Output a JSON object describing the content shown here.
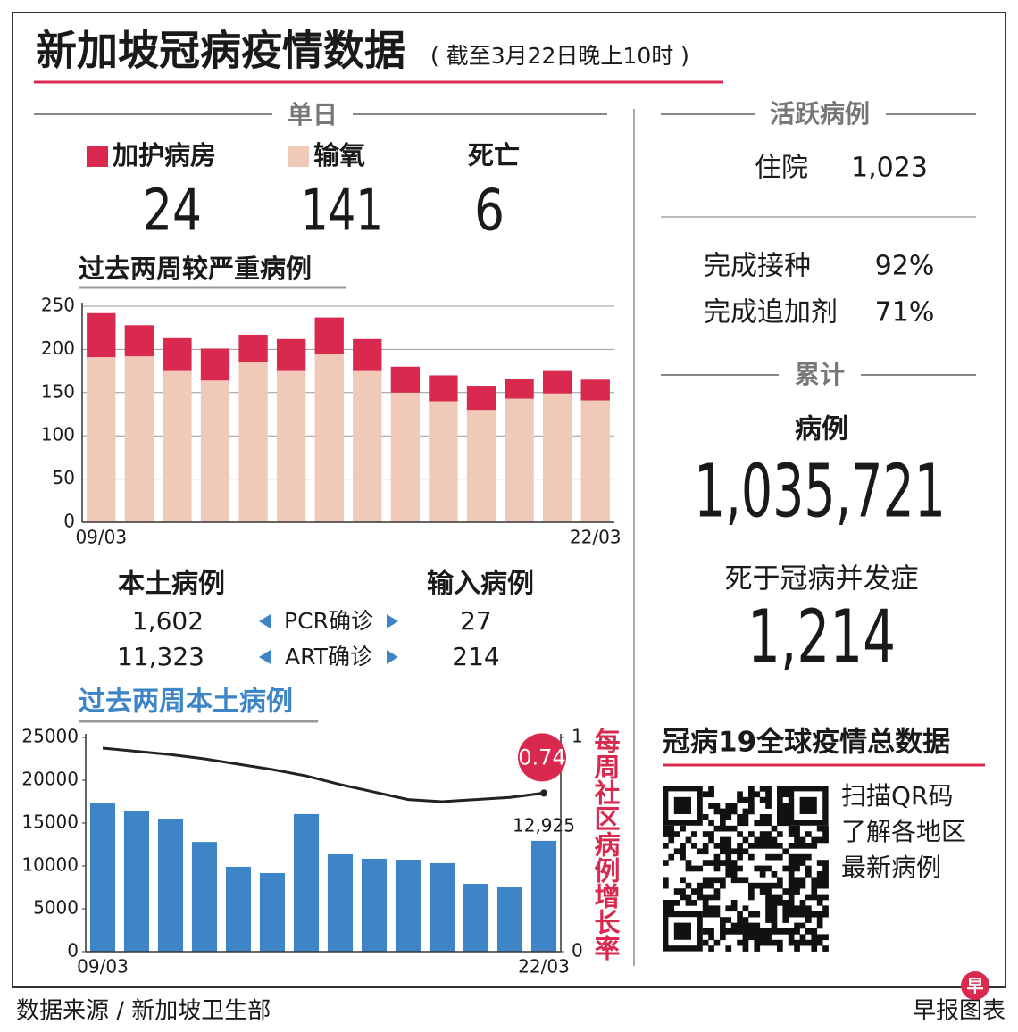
{
  "header": {
    "title": "新加坡冠病疫情数据",
    "subtitle": "( 截至3月22日晚上10时 )"
  },
  "daily": {
    "label": "单日",
    "icu": "24",
    "oxygen": "141",
    "death_label": "死亡",
    "death": "6"
  },
  "cases_table": {
    "local_header": "本土病例",
    "imported_header": "输入病例",
    "rows": [
      [
        "1,602",
        "PCR确诊",
        "27"
      ],
      [
        "11,323",
        "ART确诊",
        "214"
      ]
    ]
  },
  "active": {
    "label": "活跃病例",
    "hospital_label": "住院",
    "hospital": "1,023",
    "vaccinated_label": "完成接种",
    "vaccinated": "92%",
    "booster_label": "完成追加剂",
    "booster": "71%"
  },
  "cumulative": {
    "label": "累计",
    "cases_label": "病例",
    "cases": "1,035,721",
    "deaths_label": "死于冠病并发症",
    "deaths": "1,214"
  },
  "global": {
    "title": "冠病19全球疫情总数据",
    "lines": [
      "扫描QR码",
      "了解各地区",
      "最新病例"
    ]
  },
  "footer": {
    "source": "数据来源 / 新加坡卫生部",
    "credit": "早报图表",
    "logo": "早"
  },
  "chart_data": [
    {
      "type": "bar",
      "stacked": true,
      "title": "过去两周较严重病例",
      "categories": [
        "09/03",
        null,
        null,
        null,
        null,
        null,
        null,
        null,
        null,
        null,
        null,
        null,
        null,
        "22/03"
      ],
      "series": [
        {
          "name": "输氧",
          "color": "#f0c9b8",
          "values": [
            191,
            192,
            175,
            164,
            185,
            175,
            195,
            175,
            150,
            140,
            130,
            143,
            149,
            141
          ]
        },
        {
          "name": "加护病房",
          "color": "#d9294f",
          "values": [
            51,
            36,
            38,
            37,
            32,
            37,
            42,
            37,
            30,
            30,
            28,
            23,
            26,
            24
          ]
        }
      ],
      "ylim": [
        0,
        250
      ],
      "yticks": [
        0,
        50,
        100,
        150,
        200,
        250
      ],
      "grid": true
    },
    {
      "type": "bar",
      "title": "过去两周本土病例",
      "y2label": "每周社区病例增长率",
      "categories": [
        "09/03",
        null,
        null,
        null,
        null,
        null,
        null,
        null,
        null,
        null,
        null,
        null,
        null,
        "22/03"
      ],
      "series": [
        {
          "type": "bar",
          "color": "#3d85c6",
          "values": [
            17300,
            16460,
            15520,
            12800,
            9900,
            9170,
            16050,
            11360,
            10840,
            10730,
            10320,
            7920,
            7500,
            12925
          ],
          "value_labels": [
            null,
            null,
            null,
            null,
            null,
            null,
            null,
            null,
            null,
            null,
            null,
            null,
            null,
            "12,925"
          ]
        },
        {
          "type": "line",
          "axis": "y2",
          "color": "#222222",
          "values": [
            0.95,
            0.935,
            0.92,
            0.9,
            0.875,
            0.85,
            0.82,
            0.78,
            0.745,
            0.71,
            0.7,
            0.71,
            0.72,
            0.74
          ]
        }
      ],
      "ylim": [
        0,
        25000
      ],
      "yticks": [
        0,
        5000,
        10000,
        15000,
        20000,
        25000
      ],
      "y2lim": [
        0,
        1
      ],
      "y2ticks": [
        0,
        1
      ],
      "grid": false
    }
  ]
}
